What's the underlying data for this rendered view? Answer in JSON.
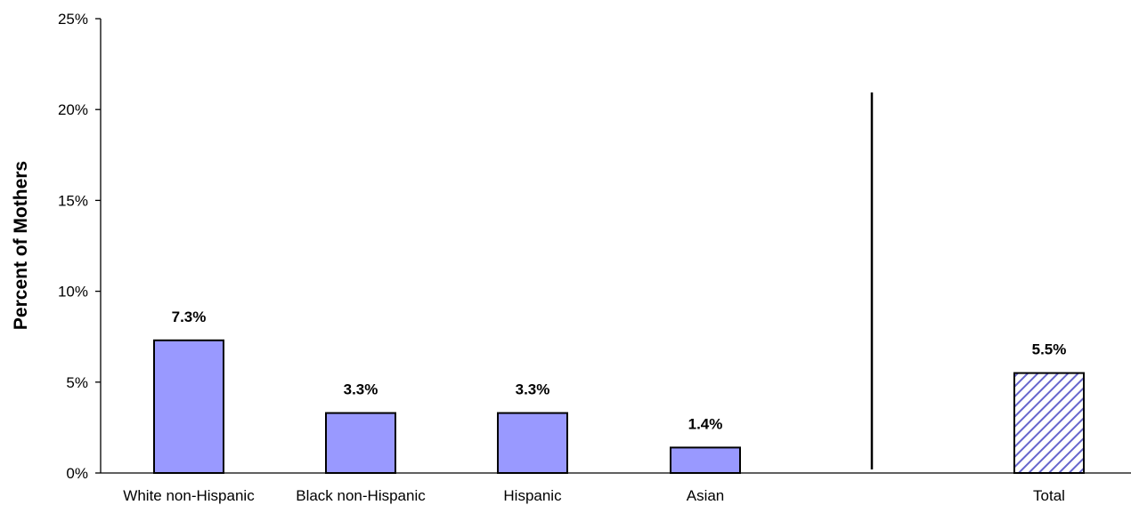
{
  "chart_data": {
    "type": "bar",
    "title": "",
    "xlabel": "",
    "ylabel": "Percent of Mothers",
    "ylim": [
      0,
      25
    ],
    "ytick_labels": [
      "0%",
      "5%",
      "10%",
      "15%",
      "20%",
      "25%"
    ],
    "ytick_values": [
      0,
      5,
      10,
      15,
      20,
      25
    ],
    "categories": [
      "White non-Hispanic",
      "Black non-Hispanic",
      "Hispanic",
      "Asian",
      "Total"
    ],
    "values": [
      7.3,
      3.3,
      3.3,
      1.4,
      5.5
    ],
    "data_labels": [
      "7.3%",
      "3.3%",
      "3.3%",
      "1.4%",
      "5.5%"
    ],
    "bar_fills": [
      "solid",
      "solid",
      "solid",
      "solid",
      "hatched"
    ],
    "separator_before_category": "Total",
    "grid": false,
    "legend": "none",
    "colors": {
      "bar": "#9999ff",
      "outline": "#000000",
      "hatch": "#6666cc"
    }
  }
}
